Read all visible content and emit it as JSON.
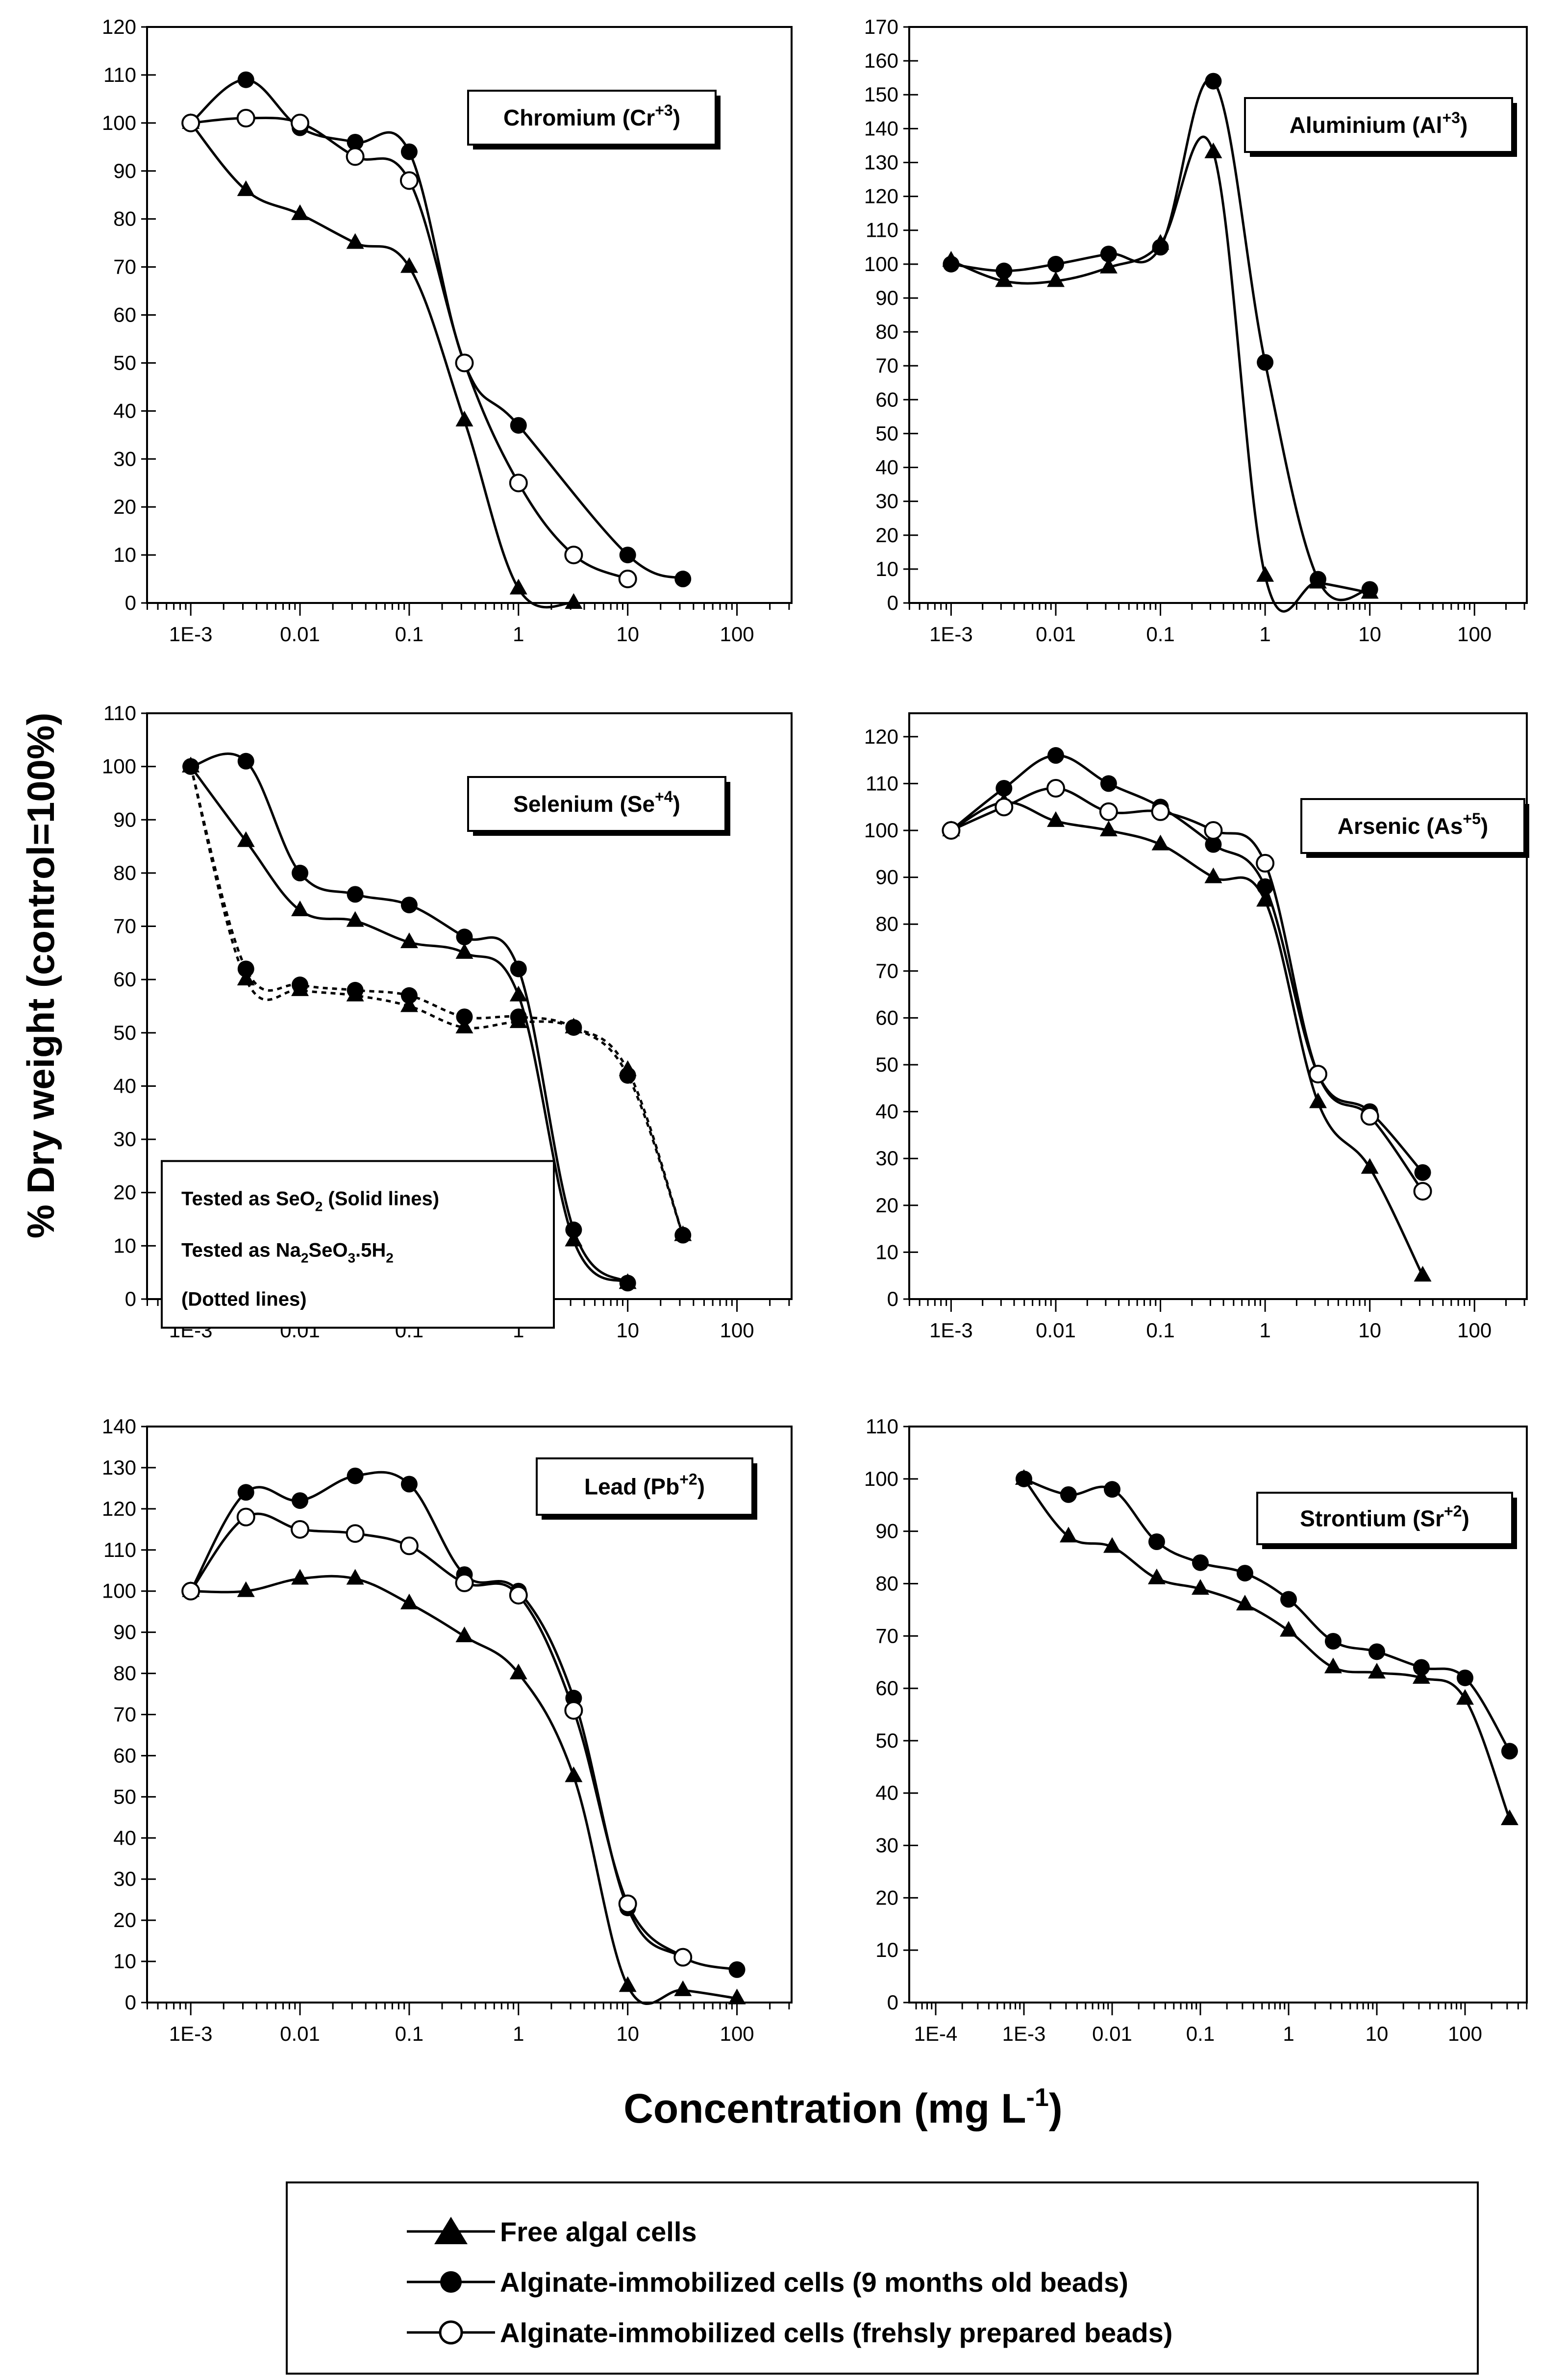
{
  "figure": {
    "ylabel": "% Dry weight (control=100%)",
    "xlabel": "Concentration (mg L",
    "xlabel_sup": "-1",
    "xlabel_close": ")",
    "legend": [
      {
        "label": "Free algal cells",
        "marker": "triangle"
      },
      {
        "label": "Alginate-immobilized cells (9 months old beads)",
        "marker": "filled-circle"
      },
      {
        "label": "Alginate-immobilized cells (frehsly prepared beads)",
        "marker": "open-circle"
      }
    ]
  },
  "chart_data": [
    {
      "type": "line",
      "title": "Chromium (Cr",
      "title_sup": "+3",
      "title_close": ")",
      "xscale": "log",
      "xlim_exp": [
        -3.4,
        2.5
      ],
      "xticks": [
        "1E-3",
        "0.01",
        "0.1",
        "1",
        "10",
        "100"
      ],
      "xtick_exps": [
        -3,
        -2,
        -1,
        0,
        1,
        2
      ],
      "ylim": [
        0,
        120
      ],
      "ystep": 10,
      "series": [
        {
          "name": "Free algal cells",
          "marker": "triangle",
          "x": [
            0.001,
            0.0032,
            0.01,
            0.032,
            0.1,
            0.32,
            1,
            3.2
          ],
          "y": [
            100,
            86,
            81,
            75,
            70,
            38,
            3,
            0
          ]
        },
        {
          "name": "Alginate-immobilized cells (9 months old beads)",
          "marker": "filled-circle",
          "x": [
            0.001,
            0.0032,
            0.01,
            0.032,
            0.1,
            0.32,
            1,
            10,
            32
          ],
          "y": [
            100,
            109,
            99,
            96,
            94,
            50,
            37,
            10,
            5
          ]
        },
        {
          "name": "Alginate-immobilized cells (frehsly prepared beads)",
          "marker": "open-circle",
          "x": [
            0.001,
            0.0032,
            0.01,
            0.032,
            0.1,
            0.32,
            1,
            3.2,
            10
          ],
          "y": [
            100,
            101,
            100,
            93,
            88,
            50,
            25,
            10,
            5
          ]
        }
      ]
    },
    {
      "type": "line",
      "title": "Aluminium (Al",
      "title_sup": "+3",
      "title_close": ")",
      "xscale": "log",
      "xlim_exp": [
        -3.4,
        2.5
      ],
      "xticks": [
        "1E-3",
        "0.01",
        "0.1",
        "1",
        "10",
        "100"
      ],
      "xtick_exps": [
        -3,
        -2,
        -1,
        0,
        1,
        2
      ],
      "ylim": [
        0,
        170
      ],
      "ystep": 10,
      "series": [
        {
          "name": "Free algal cells",
          "marker": "triangle",
          "x": [
            0.001,
            0.0032,
            0.01,
            0.032,
            0.1,
            0.32,
            1,
            3.2,
            10
          ],
          "y": [
            101,
            95,
            95,
            99,
            106,
            133,
            8,
            6,
            3
          ]
        },
        {
          "name": "Alginate-immobilized cells (9 months old beads)",
          "marker": "filled-circle",
          "x": [
            0.001,
            0.0032,
            0.01,
            0.032,
            0.1,
            0.32,
            1,
            3.2,
            10
          ],
          "y": [
            100,
            98,
            100,
            103,
            105,
            154,
            71,
            7,
            4
          ]
        },
        {
          "name": "Alginate-immobilized cells (frehsly prepared beads)",
          "marker": "open-circle",
          "x": [],
          "y": []
        }
      ]
    },
    {
      "type": "line",
      "title": "Selenium (Se",
      "title_sup": "+4",
      "title_close": ")",
      "xscale": "log",
      "xlim_exp": [
        -3.4,
        2.5
      ],
      "xticks": [
        "1E-3",
        "0.01",
        "0.1",
        "1",
        "10",
        "100"
      ],
      "xtick_exps": [
        -3,
        -2,
        -1,
        0,
        1,
        2
      ],
      "ylim": [
        0,
        110
      ],
      "ystep": 10,
      "note": [
        "Tested as SeO",
        "(Solid lines)",
        "Tested as Na",
        "SeO",
        ".5H",
        "(Dotted lines)"
      ],
      "series": [
        {
          "name": "Free algal cells (SeO2)",
          "marker": "triangle",
          "style": "solid",
          "x": [
            0.001,
            0.0032,
            0.01,
            0.032,
            0.1,
            0.32,
            1,
            3.2,
            10
          ],
          "y": [
            100,
            86,
            73,
            71,
            67,
            65,
            57,
            11,
            3
          ]
        },
        {
          "name": "Alginate-immobilized cells, 9 months (SeO2)",
          "marker": "filled-circle",
          "style": "solid",
          "x": [
            0.001,
            0.0032,
            0.01,
            0.032,
            0.1,
            0.32,
            1,
            3.2,
            10
          ],
          "y": [
            100,
            101,
            80,
            76,
            74,
            68,
            62,
            13,
            3
          ]
        },
        {
          "name": "Free algal cells (Na2SeO3.5H2O)",
          "marker": "triangle",
          "style": "dotted",
          "x": [
            0.001,
            0.0032,
            0.01,
            0.032,
            0.1,
            0.32,
            1,
            3.2,
            10,
            32
          ],
          "y": [
            100,
            60,
            58,
            57,
            55,
            51,
            52,
            51,
            43,
            12
          ]
        },
        {
          "name": "Alginate-immobilized cells, 9 months (Na2SeO3.5H2O)",
          "marker": "filled-circle",
          "style": "dotted",
          "x": [
            0.001,
            0.0032,
            0.01,
            0.032,
            0.1,
            0.32,
            1,
            3.2,
            10,
            32
          ],
          "y": [
            100,
            62,
            59,
            58,
            57,
            53,
            53,
            51,
            42,
            12
          ]
        }
      ]
    },
    {
      "type": "line",
      "title": "Arsenic (As",
      "title_sup": "+5",
      "title_close": ")",
      "xscale": "log",
      "xlim_exp": [
        -3.4,
        2.5
      ],
      "xticks": [
        "1E-3",
        "0.01",
        "0.1",
        "1",
        "10",
        "100"
      ],
      "xtick_exps": [
        -3,
        -2,
        -1,
        0,
        1,
        2
      ],
      "ylim": [
        0,
        125
      ],
      "ystep": 10,
      "series": [
        {
          "name": "Free algal cells",
          "marker": "triangle",
          "x": [
            0.001,
            0.0032,
            0.01,
            0.032,
            0.1,
            0.32,
            1,
            3.2,
            10,
            32
          ],
          "y": [
            100,
            106,
            102,
            100,
            97,
            90,
            85,
            42,
            28,
            5
          ]
        },
        {
          "name": "Alginate-immobilized cells (9 months old beads)",
          "marker": "filled-circle",
          "x": [
            0.001,
            0.0032,
            0.01,
            0.032,
            0.1,
            0.32,
            1,
            3.2,
            10,
            32
          ],
          "y": [
            100,
            109,
            116,
            110,
            105,
            97,
            88,
            48,
            40,
            27
          ]
        },
        {
          "name": "Alginate-immobilized cells (frehsly prepared beads)",
          "marker": "open-circle",
          "x": [
            0.001,
            0.0032,
            0.01,
            0.032,
            0.1,
            0.32,
            1,
            3.2,
            10,
            32
          ],
          "y": [
            100,
            105,
            109,
            104,
            104,
            100,
            93,
            48,
            39,
            23
          ]
        }
      ]
    },
    {
      "type": "line",
      "title": "Lead (Pb",
      "title_sup": "+2",
      "title_close": ")",
      "xscale": "log",
      "xlim_exp": [
        -3.4,
        2.5
      ],
      "xticks": [
        "1E-3",
        "0.01",
        "0.1",
        "1",
        "10",
        "100"
      ],
      "xtick_exps": [
        -3,
        -2,
        -1,
        0,
        1,
        2
      ],
      "ylim": [
        0,
        140
      ],
      "ystep": 10,
      "series": [
        {
          "name": "Free algal cells",
          "marker": "triangle",
          "x": [
            0.001,
            0.0032,
            0.01,
            0.032,
            0.1,
            0.32,
            1,
            3.2,
            10,
            32,
            100
          ],
          "y": [
            100,
            100,
            103,
            103,
            97,
            89,
            80,
            55,
            4,
            3,
            1
          ]
        },
        {
          "name": "Alginate-immobilized cells (9 months old beads)",
          "marker": "filled-circle",
          "x": [
            0.001,
            0.0032,
            0.01,
            0.032,
            0.1,
            0.32,
            1,
            3.2,
            10,
            32,
            100
          ],
          "y": [
            100,
            124,
            122,
            128,
            126,
            104,
            100,
            74,
            23,
            11,
            8
          ]
        },
        {
          "name": "Alginate-immobilized cells (frehsly prepared beads)",
          "marker": "open-circle",
          "x": [
            0.001,
            0.0032,
            0.01,
            0.032,
            0.1,
            0.32,
            1,
            3.2,
            10,
            32
          ],
          "y": [
            100,
            118,
            115,
            114,
            111,
            102,
            99,
            71,
            24,
            11
          ]
        }
      ]
    },
    {
      "type": "line",
      "title": "Strontium (Sr",
      "title_sup": "+2",
      "title_close": ")",
      "xscale": "log",
      "xlim_exp": [
        -4.3,
        2.7
      ],
      "xticks": [
        "1E-4",
        "1E-3",
        "0.01",
        "0.1",
        "1",
        "10",
        "100"
      ],
      "xtick_exps": [
        -4,
        -3,
        -2,
        -1,
        0,
        1,
        2
      ],
      "ylim": [
        0,
        110
      ],
      "ystep": 10,
      "series": [
        {
          "name": "Free algal cells",
          "marker": "triangle",
          "x": [
            0.001,
            0.0032,
            0.01,
            0.032,
            0.1,
            0.32,
            1,
            3.2,
            10,
            32,
            100,
            320
          ],
          "y": [
            100,
            89,
            87,
            81,
            79,
            76,
            71,
            64,
            63,
            62,
            58,
            35
          ]
        },
        {
          "name": "Alginate-immobilized cells (9 months old beads)",
          "marker": "filled-circle",
          "x": [
            0.001,
            0.0032,
            0.01,
            0.032,
            0.1,
            0.32,
            1,
            3.2,
            10,
            32,
            100,
            320
          ],
          "y": [
            100,
            97,
            98,
            88,
            84,
            82,
            77,
            69,
            67,
            64,
            62,
            48
          ]
        },
        {
          "name": "Alginate-immobilized cells (frehsly prepared beads)",
          "marker": "open-circle",
          "x": [],
          "y": []
        }
      ]
    }
  ]
}
